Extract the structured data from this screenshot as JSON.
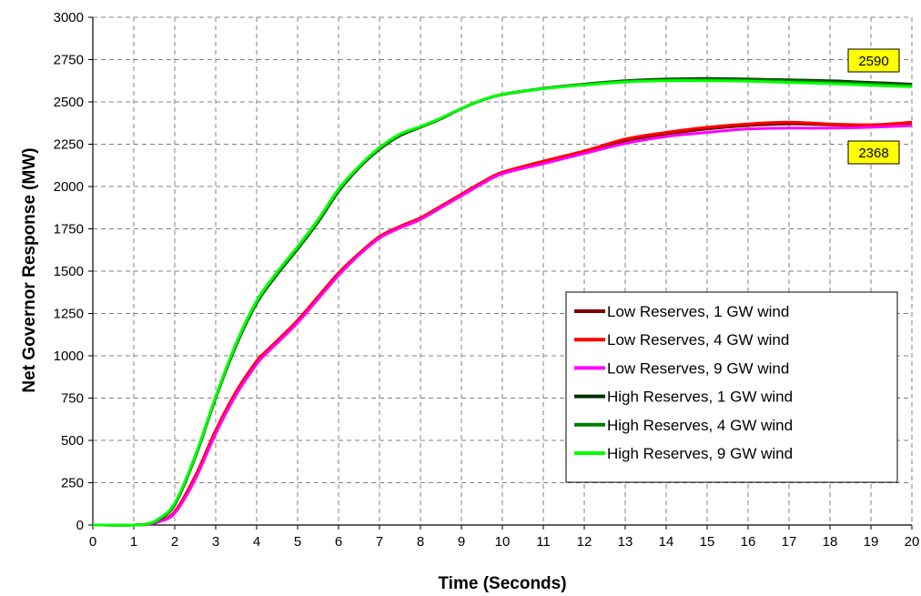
{
  "chart_data": {
    "type": "line",
    "title": "",
    "xlabel": "Time (Seconds)",
    "ylabel": "Net Governor Response (MW)",
    "xlim": [
      0,
      20
    ],
    "ylim": [
      0,
      3000
    ],
    "x_ticks": [
      "0",
      "1",
      "2",
      "3",
      "4",
      "5",
      "6",
      "7",
      "8",
      "9",
      "10",
      "11",
      "12",
      "13",
      "14",
      "15",
      "16",
      "17",
      "18",
      "19",
      "20"
    ],
    "y_ticks": [
      "0",
      "250",
      "500",
      "750",
      "1000",
      "1250",
      "1500",
      "1750",
      "2000",
      "2250",
      "2500",
      "2750",
      "3000"
    ],
    "grid": true,
    "legend_position": "bottom-right",
    "series": [
      {
        "name": "Low Reserves, 1 GW wind",
        "color": "#800000",
        "x": [
          0,
          1,
          1.3,
          1.6,
          2,
          2.5,
          3,
          3.5,
          4,
          4.2,
          4.5,
          5,
          5.5,
          6,
          6.5,
          7,
          7.5,
          8,
          8.5,
          9,
          9.5,
          10,
          11,
          12,
          13,
          14,
          15,
          16,
          17,
          18,
          19,
          20
        ],
        "y": [
          0,
          0,
          5,
          20,
          75,
          280,
          550,
          780,
          960,
          1010,
          1080,
          1200,
          1340,
          1480,
          1600,
          1700,
          1760,
          1810,
          1880,
          1950,
          2020,
          2080,
          2140,
          2200,
          2270,
          2310,
          2340,
          2360,
          2370,
          2365,
          2360,
          2370
        ]
      },
      {
        "name": "Low Reserves, 4 GW wind",
        "color": "#ff0000",
        "x": [
          0,
          1,
          1.3,
          1.6,
          2,
          2.5,
          3,
          3.5,
          4,
          4.2,
          4.5,
          5,
          5.5,
          6,
          6.5,
          7,
          7.5,
          8,
          8.5,
          9,
          9.5,
          10,
          11,
          12,
          13,
          14,
          15,
          16,
          17,
          18,
          19,
          20
        ],
        "y": [
          0,
          0,
          5,
          20,
          80,
          290,
          560,
          790,
          970,
          1020,
          1090,
          1210,
          1350,
          1490,
          1605,
          1705,
          1765,
          1815,
          1885,
          1955,
          2025,
          2085,
          2150,
          2210,
          2280,
          2320,
          2350,
          2370,
          2380,
          2370,
          2365,
          2380
        ]
      },
      {
        "name": "Low Reserves, 9 GW wind",
        "color": "#ff00ff",
        "x": [
          0,
          1,
          1.3,
          1.6,
          2,
          2.5,
          3,
          3.5,
          4,
          4.2,
          4.5,
          5,
          5.5,
          6,
          6.5,
          7,
          7.5,
          8,
          8.5,
          9,
          9.5,
          10,
          11,
          12,
          13,
          14,
          15,
          16,
          17,
          18,
          19,
          20
        ],
        "y": [
          0,
          0,
          4,
          18,
          70,
          270,
          540,
          770,
          950,
          1005,
          1075,
          1195,
          1335,
          1475,
          1595,
          1695,
          1755,
          1805,
          1875,
          1945,
          2015,
          2075,
          2135,
          2195,
          2255,
          2295,
          2320,
          2340,
          2345,
          2345,
          2350,
          2360
        ]
      },
      {
        "name": "High Reserves, 1 GW wind",
        "color": "#003300",
        "x": [
          0,
          1,
          1.3,
          1.6,
          2,
          2.5,
          3,
          3.5,
          4,
          4.5,
          5,
          5.5,
          6,
          6.5,
          7,
          7.5,
          8,
          8.5,
          9,
          9.5,
          10,
          11,
          12,
          13,
          14,
          15,
          16,
          17,
          18,
          19,
          20
        ],
        "y": [
          0,
          0,
          5,
          30,
          120,
          400,
          750,
          1060,
          1310,
          1480,
          1630,
          1790,
          1970,
          2110,
          2220,
          2300,
          2350,
          2400,
          2460,
          2510,
          2545,
          2580,
          2605,
          2625,
          2635,
          2638,
          2635,
          2630,
          2625,
          2615,
          2605
        ]
      },
      {
        "name": "High Reserves, 4 GW wind",
        "color": "#008000",
        "x": [
          0,
          1,
          1.3,
          1.6,
          2,
          2.5,
          3,
          3.5,
          4,
          4.5,
          5,
          5.5,
          6,
          6.5,
          7,
          7.5,
          8,
          8.5,
          9,
          9.5,
          10,
          11,
          12,
          13,
          14,
          15,
          16,
          17,
          18,
          19,
          20
        ],
        "y": [
          0,
          0,
          5,
          30,
          125,
          405,
          755,
          1065,
          1315,
          1485,
          1635,
          1795,
          1975,
          2115,
          2225,
          2305,
          2352,
          2402,
          2460,
          2510,
          2543,
          2578,
          2603,
          2622,
          2630,
          2632,
          2630,
          2625,
          2618,
          2608,
          2598
        ]
      },
      {
        "name": "High Reserves, 9 GW wind",
        "color": "#00ff00",
        "x": [
          0,
          1,
          1.3,
          1.6,
          2,
          2.5,
          3,
          3.5,
          4,
          4.5,
          5,
          5.5,
          6,
          6.5,
          7,
          7.5,
          8,
          8.5,
          9,
          9.5,
          10,
          11,
          12,
          13,
          14,
          15,
          16,
          17,
          18,
          19,
          20
        ],
        "y": [
          0,
          0,
          6,
          35,
          130,
          410,
          760,
          1075,
          1325,
          1495,
          1645,
          1805,
          1985,
          2120,
          2230,
          2310,
          2355,
          2405,
          2462,
          2512,
          2545,
          2578,
          2600,
          2618,
          2625,
          2625,
          2622,
          2615,
          2608,
          2598,
          2590
        ]
      }
    ],
    "annotations": [
      {
        "text": "2590",
        "x": 20,
        "y": 2590
      },
      {
        "text": "2368",
        "x": 20,
        "y": 2368
      }
    ]
  }
}
